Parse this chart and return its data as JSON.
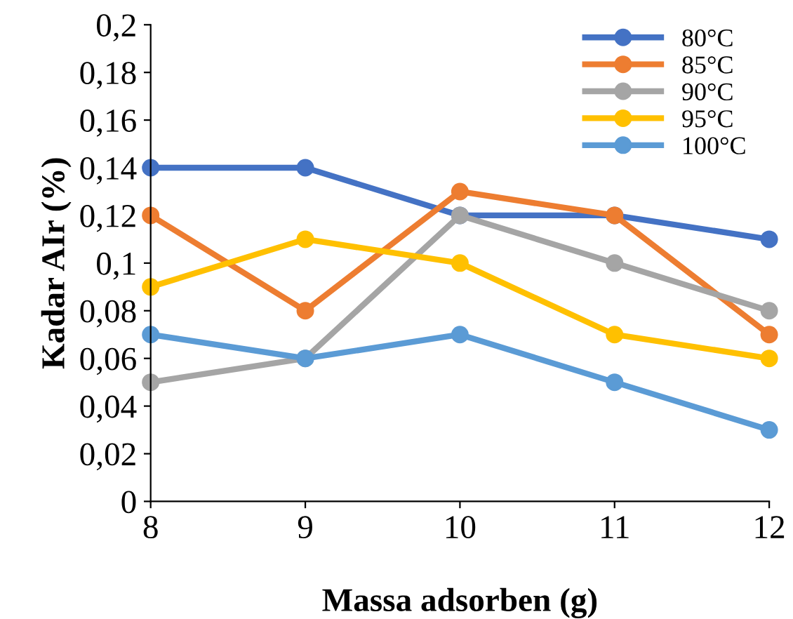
{
  "chart_data": {
    "type": "line",
    "xlabel": "Massa adsorben (g)",
    "ylabel": "Kadar AIr (%)",
    "x": [
      8,
      9,
      10,
      11,
      12
    ],
    "series": [
      {
        "name": "80°C",
        "color": "#4472c4",
        "values": [
          0.14,
          0.14,
          0.12,
          0.12,
          0.11
        ]
      },
      {
        "name": "85°C",
        "color": "#ed7d31",
        "values": [
          0.12,
          0.08,
          0.13,
          0.12,
          0.07
        ]
      },
      {
        "name": "90°C",
        "color": "#a5a5a5",
        "values": [
          0.05,
          0.06,
          0.12,
          0.1,
          0.08
        ]
      },
      {
        "name": "95°C",
        "color": "#ffc000",
        "values": [
          0.09,
          0.11,
          0.1,
          0.07,
          0.06
        ]
      },
      {
        "name": "100°C",
        "color": "#5b9bd5",
        "values": [
          0.07,
          0.06,
          0.07,
          0.05,
          0.03
        ]
      }
    ],
    "xlim": [
      8,
      12
    ],
    "xticks": [
      8,
      9,
      10,
      11,
      12
    ],
    "ylim": [
      0,
      0.2
    ],
    "yticks": [
      {
        "value": 0,
        "label": "0"
      },
      {
        "value": 0.02,
        "label": "0,02"
      },
      {
        "value": 0.04,
        "label": "0,04"
      },
      {
        "value": 0.06,
        "label": "0,06"
      },
      {
        "value": 0.08,
        "label": "0,08"
      },
      {
        "value": 0.1,
        "label": "0,1"
      },
      {
        "value": 0.12,
        "label": "0,12"
      },
      {
        "value": 0.14,
        "label": "0,14"
      },
      {
        "value": 0.16,
        "label": "0,16"
      },
      {
        "value": 0.18,
        "label": "0,18"
      },
      {
        "value": 0.2,
        "label": "0,2"
      }
    ],
    "grid": false,
    "legend": "top right",
    "marker": "circle",
    "line_style": "solid"
  }
}
